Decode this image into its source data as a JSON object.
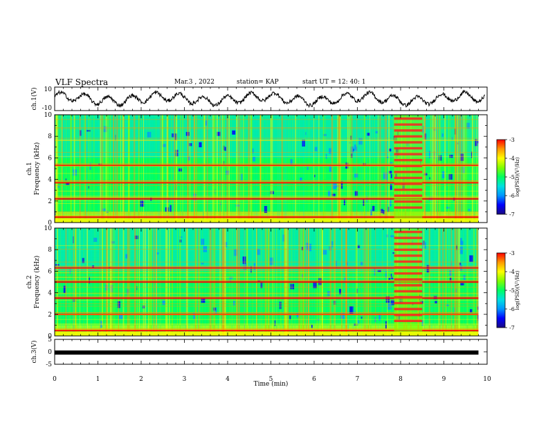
{
  "header": {
    "title": "VLF Spectra",
    "date": "Mar.3  , 2022",
    "station": "station= KAP",
    "start": "start  UT  =   12: 40: 1"
  },
  "colors": {
    "colormap": [
      "#1a0a80",
      "#0000ff",
      "#0096ff",
      "#00e0e0",
      "#00ff60",
      "#80ff00",
      "#ffff00",
      "#ff9900",
      "#ff0000"
    ],
    "trace": "#000000",
    "burst_highlight": "#ff2020"
  },
  "chart_data": [
    {
      "type": "line",
      "panel": "ch1-waveform",
      "ylabel": "ch.1(V)",
      "ylim": [
        -10,
        10
      ],
      "y_ticks": [
        "10",
        "-10"
      ],
      "x_range": [
        0,
        10
      ],
      "dominant_oscillation_period_min": 0.55,
      "amplitude_V": 6
    },
    {
      "type": "heatmap",
      "panel": "ch1-spectrogram",
      "ylabel": "ch.1\nFrequency (kHz)",
      "ylim": [
        0,
        10
      ],
      "y_ticks": [
        "0",
        "2",
        "4",
        "6",
        "8",
        "10"
      ],
      "x_range": [
        0,
        9.8
      ],
      "colorbar": {
        "label": "log(PSD)(V²/Hz)",
        "ticks": [
          "-3",
          "-4",
          "-5",
          "-6",
          "-7"
        ],
        "range": [
          -7,
          -3
        ]
      },
      "strong_bands_kHz": [
        0.5,
        2.2,
        3.7,
        5.3
      ],
      "broadband_burst_min": [
        7.85,
        8.5
      ]
    },
    {
      "type": "heatmap",
      "panel": "ch2-spectrogram",
      "ylabel": "ch.2\nFrequency (kHz)",
      "ylim": [
        0,
        10
      ],
      "y_ticks": [
        "0",
        "2",
        "4",
        "6",
        "8",
        "10"
      ],
      "x_range": [
        0,
        9.8
      ],
      "colorbar": {
        "label": "log(PSD)(V²/Hz)",
        "ticks": [
          "-3",
          "-4",
          "-5",
          "-6",
          "-7"
        ],
        "range": [
          -7,
          -3
        ]
      },
      "strong_bands_kHz": [
        0.5,
        2.0,
        3.5,
        5.0,
        6.3
      ],
      "broadband_burst_min": [
        7.85,
        8.5
      ]
    },
    {
      "type": "line",
      "panel": "ch3-waveform",
      "ylabel": "ch.3(V)",
      "ylim": [
        -5,
        5
      ],
      "y_ticks": [
        "5",
        "0",
        "-5"
      ],
      "x_range": [
        0,
        9.8
      ],
      "level_V": -0.3
    }
  ],
  "x_axis": {
    "label": "Time (min)",
    "ticks": [
      "0",
      "1",
      "2",
      "3",
      "4",
      "5",
      "6",
      "7",
      "8",
      "9",
      "10"
    ],
    "range": [
      0,
      10
    ]
  }
}
